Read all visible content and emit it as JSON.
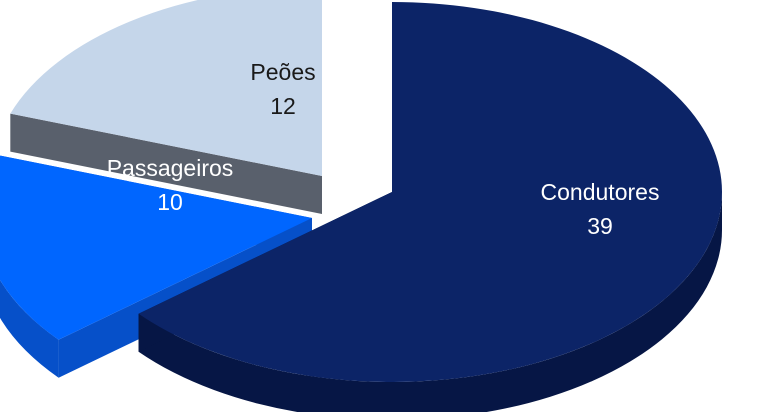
{
  "chart_data": {
    "type": "pie",
    "style": "3d-exploded",
    "slices": [
      {
        "label": "Condutores",
        "value": 39,
        "top_color": "#0c2467",
        "side_color": "#061645",
        "text_color": "#ffffff"
      },
      {
        "label": "Passageiros",
        "value": 10,
        "top_color": "#0066ff",
        "side_color": "#0650c9",
        "text_color": "#ffffff"
      },
      {
        "label": "Peões",
        "value": 12,
        "top_color": "#c5d6ea",
        "side_color": "#59606c",
        "text_color": "#1a1a1a"
      }
    ],
    "legend": "none"
  }
}
